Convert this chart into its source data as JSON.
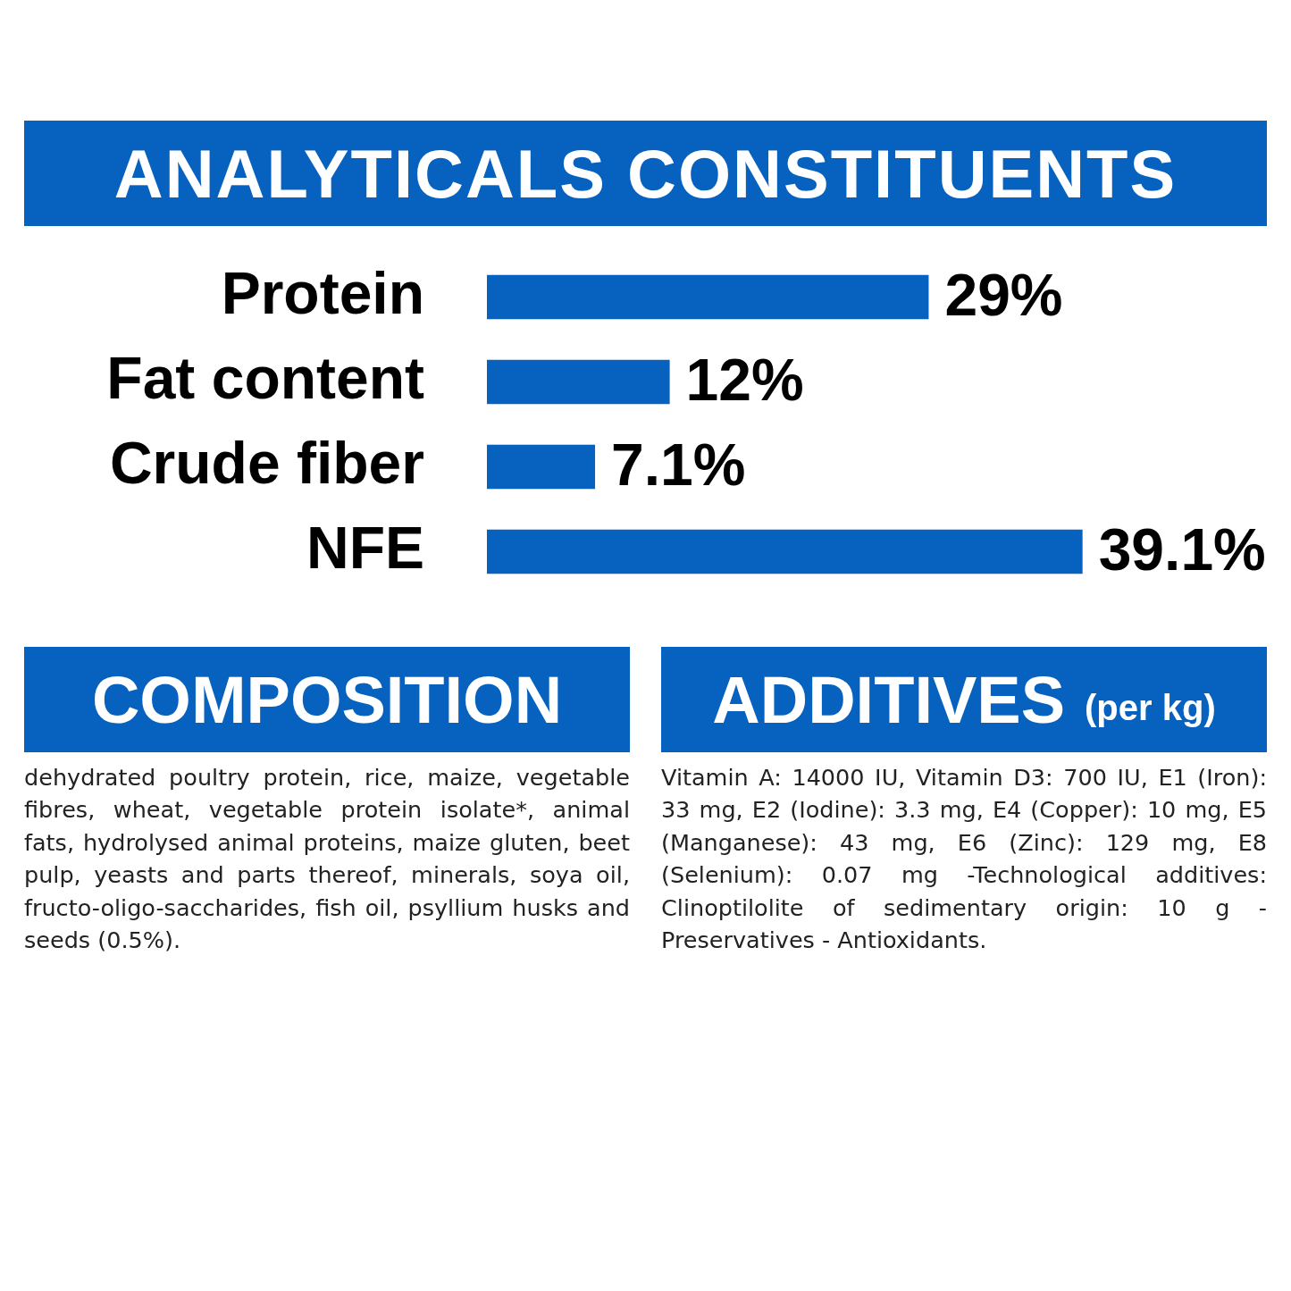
{
  "chart_data": [
    {
      "type": "bar",
      "title": "ANALYTICALS CONSTITUENTS",
      "orientation": "horizontal",
      "data_labels": true,
      "legend": false,
      "categories": [
        "Protein",
        "Fat content",
        "Crude fiber",
        "NFE"
      ],
      "values": [
        29,
        12,
        7.1,
        39.1
      ],
      "color": "#0761bf",
      "value_labels": [
        "29%",
        "12%",
        "7.1%",
        "39.1%"
      ]
    },
    {
      "type": "other",
      "title": "COMPOSITION",
      "annotations": [
        "dehydrated poultry protein, rice, maize, vegetable fibres, wheat, vegetable protein isolate*, animal fats, hydrolysed animal proteins, maize gluten, beet pulp, yeasts and parts thereof, minerals, soya oil, fructo-oligo-saccharides, fish oil, psyllium husks and seeds (0.5%)."
      ]
    },
    {
      "type": "other",
      "title": "ADDITIVES",
      "subtitle": "(per kg)",
      "annotations": [
        "Vitamin A: 14000 IU, Vitamin D3: 700 IU, E1 (Iron): 33 mg, E2 (Iodine): 3.3 mg, E4 (Copper): 10 mg, E5 (Manganese): 43 mg, E6 (Zinc): 129 mg, E8 (Selenium): 0.07 mg -Technological additives: Clinoptilolite of sedimentary origin: 10 g - Preservatives - Antioxidants."
      ]
    }
  ]
}
